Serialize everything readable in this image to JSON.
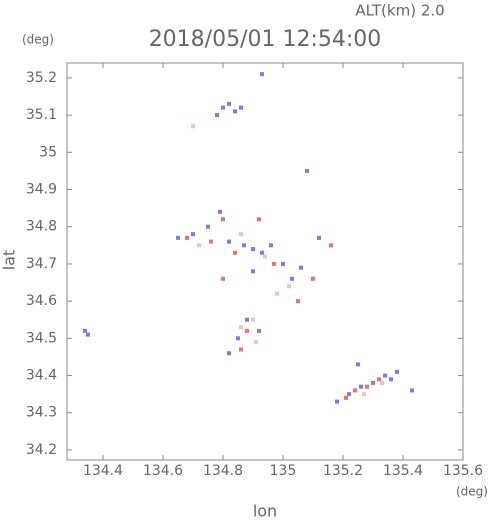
{
  "chart_data": {
    "type": "scatter",
    "title": "2018/05/01 12:54:00",
    "subtitle": "ALT(km) 2.0",
    "x_label": "lon",
    "y_label": "lat",
    "x_unit": "(deg)",
    "y_unit": "(deg)",
    "xlim": [
      134.28,
      135.6
    ],
    "ylim": [
      34.173,
      35.24
    ],
    "xticks": [
      134.4,
      134.6,
      134.8,
      135.0,
      135.2,
      135.4,
      135.6
    ],
    "yticks": [
      34.2,
      34.3,
      34.4,
      34.5,
      34.6,
      34.7,
      34.8,
      34.9,
      35.0,
      35.1,
      35.2
    ],
    "series": [
      {
        "color": "#7b7bef",
        "x": [
          134.34,
          134.35,
          134.93,
          134.8,
          134.82,
          134.84,
          134.78,
          134.86,
          135.08,
          134.65,
          134.7,
          134.75,
          134.79,
          134.82,
          134.87,
          134.9,
          134.93,
          134.96,
          135.0,
          135.03,
          135.06,
          134.9,
          134.88,
          134.85,
          134.82,
          134.92,
          135.18,
          135.22,
          135.26,
          135.3,
          135.34,
          135.38,
          135.36,
          135.25,
          135.43,
          135.12
        ],
        "values": [
          34.52,
          34.51,
          35.21,
          35.12,
          35.13,
          35.11,
          35.1,
          35.12,
          34.95,
          34.77,
          34.78,
          34.8,
          34.84,
          34.76,
          34.75,
          34.74,
          34.73,
          34.75,
          34.7,
          34.66,
          34.69,
          34.68,
          34.55,
          34.5,
          34.46,
          34.52,
          34.33,
          34.35,
          34.37,
          34.38,
          34.4,
          34.41,
          34.39,
          34.43,
          34.36,
          34.77
        ]
      },
      {
        "color": "#f07070",
        "x": [
          134.68,
          134.8,
          134.76,
          134.84,
          134.92,
          134.97,
          135.05,
          134.8,
          134.86,
          134.88,
          135.24,
          135.28,
          135.32,
          135.21,
          135.1,
          135.16
        ],
        "values": [
          34.77,
          34.82,
          34.76,
          34.73,
          34.82,
          34.7,
          34.6,
          34.66,
          34.47,
          34.52,
          34.36,
          34.37,
          34.39,
          34.34,
          34.66,
          34.75
        ]
      },
      {
        "color": "#f4c0c0",
        "x": [
          134.72,
          134.86,
          134.94,
          135.02,
          134.9,
          134.86,
          134.91,
          134.98,
          135.27,
          135.33,
          134.7
        ],
        "values": [
          34.75,
          34.78,
          34.72,
          34.64,
          34.55,
          34.53,
          34.49,
          34.62,
          34.35,
          34.38,
          35.07
        ]
      }
    ]
  }
}
